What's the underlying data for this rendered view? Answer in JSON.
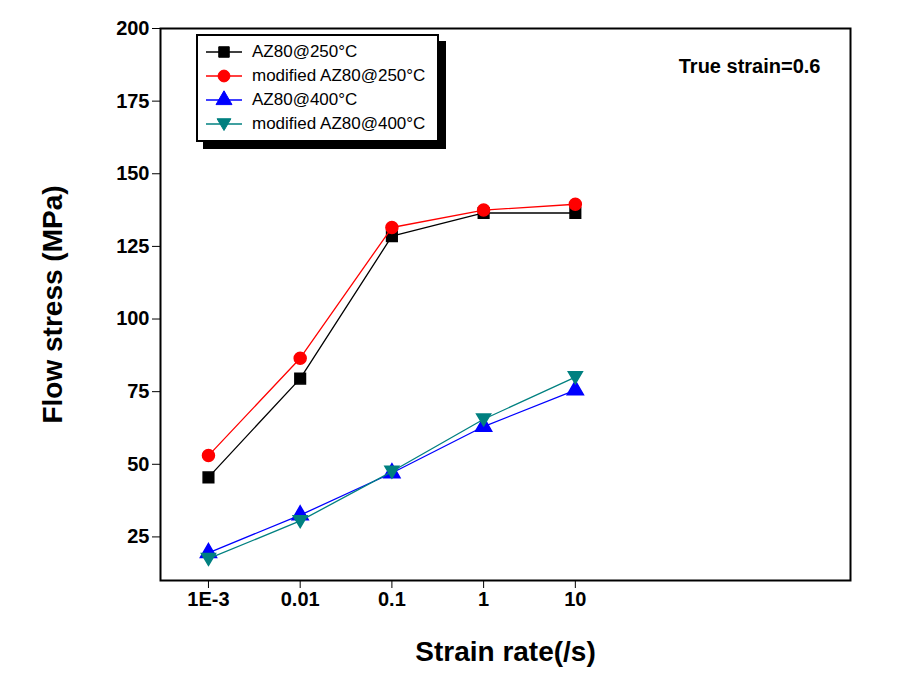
{
  "chart_data": {
    "type": "line",
    "annotation": "True strain=0.6",
    "x_label": "Strain rate(/s)",
    "y_label": "Flow stress (MPa)",
    "log": "x",
    "grid": false,
    "legend": "upper left",
    "x": [
      0.001,
      0.01,
      0.1,
      1,
      10
    ],
    "xlim": [
      0.0003,
      10000
    ],
    "xticks": [
      {
        "value": 0.001,
        "label": "1E-3"
      },
      0.01,
      0.1,
      1,
      10
    ],
    "ylim": [
      10,
      200
    ],
    "yticks": [
      25,
      50,
      75,
      100,
      125,
      150,
      175,
      200
    ],
    "series": [
      {
        "name": "AZ80@250°C",
        "color": "#000000",
        "marker": "square",
        "values": [
          45.5,
          79.5,
          128.5,
          136.5,
          136.5
        ]
      },
      {
        "name": "modified AZ80@250°C",
        "color": "#ff0000",
        "marker": "circle",
        "values": [
          53,
          86.5,
          131.5,
          137.5,
          139.5
        ]
      },
      {
        "name": "AZ80@400°C",
        "color": "#0000ff",
        "marker": "triangle-up",
        "values": [
          19.5,
          32.5,
          47,
          63,
          75.5
        ]
      },
      {
        "name": "modified AZ80@400°C",
        "color": "#008080",
        "marker": "triangle-down",
        "values": [
          17.5,
          30.5,
          47.5,
          65.5,
          80
        ]
      }
    ]
  }
}
